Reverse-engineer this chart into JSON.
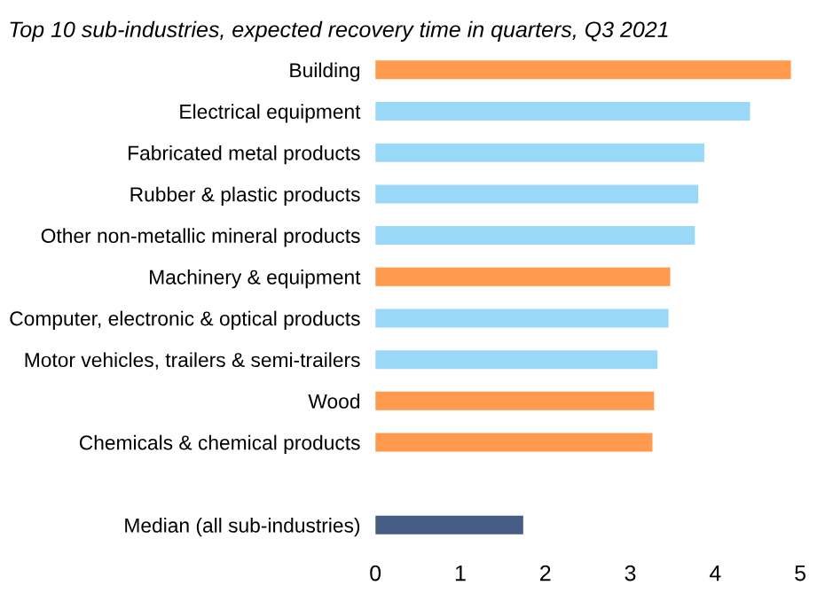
{
  "chart_data": {
    "type": "bar",
    "orientation": "horizontal",
    "title": "Top 10 sub-industries, expected recovery time in quarters, Q3 2021",
    "categories": [
      "Building",
      "Electrical equipment",
      "Fabricated metal products",
      "Rubber & plastic products",
      "Other non-metallic mineral products",
      "Machinery & equipment",
      "Computer, electronic & optical products",
      "Motor vehicles, trailers & semi-trailers",
      "Wood",
      "Chemicals & chemical products",
      null,
      "Median (all sub-industries)"
    ],
    "values": [
      4.89,
      4.41,
      3.87,
      3.8,
      3.76,
      3.47,
      3.45,
      3.32,
      3.28,
      3.26,
      null,
      1.74
    ],
    "colors": [
      "#ff9a4e",
      "#99d9f7",
      "#99d9f7",
      "#99d9f7",
      "#99d9f7",
      "#ff9a4e",
      "#99d9f7",
      "#99d9f7",
      "#ff9a4e",
      "#ff9a4e",
      "#99d9f7",
      "#475c85"
    ],
    "xlim": [
      0,
      5
    ],
    "xticks": [
      0,
      1,
      2,
      3,
      4,
      5
    ],
    "grid": false,
    "legend": false
  }
}
